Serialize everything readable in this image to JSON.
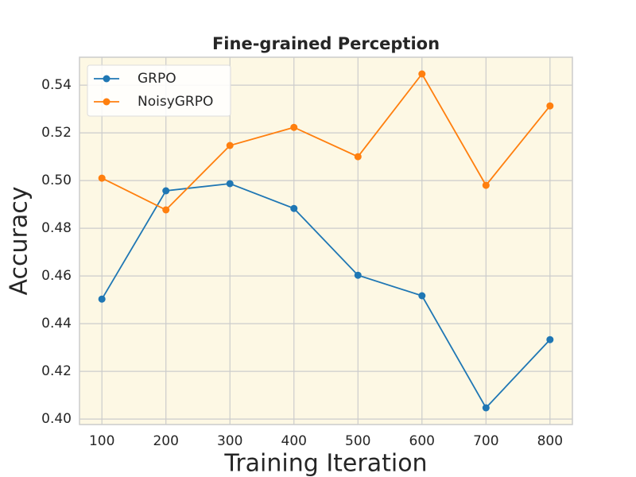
{
  "chart_data": {
    "type": "line",
    "title": "Fine-grained Perception",
    "x_label": "Training Iteration",
    "y_label": "Accuracy",
    "x": [
      100,
      200,
      300,
      400,
      500,
      600,
      700,
      800
    ],
    "series": [
      {
        "name": "GRPO",
        "color": "#1f77b4",
        "values": [
          0.4503,
          0.4957,
          0.4987,
          0.4883,
          0.4603,
          0.4517,
          0.4047,
          0.4333
        ]
      },
      {
        "name": "NoisyGRPO",
        "color": "#ff7f0e",
        "values": [
          0.501,
          0.4877,
          0.5147,
          0.5223,
          0.51,
          0.5447,
          0.498,
          0.5313
        ]
      }
    ],
    "xlim": [
      65,
      835
    ],
    "ylim": [
      0.3977,
      0.5517
    ],
    "xticks": [
      100,
      200,
      300,
      400,
      500,
      600,
      700,
      800
    ],
    "yticks": [
      {
        "value": 0.4,
        "label": "0.40"
      },
      0.42,
      0.44,
      0.46,
      0.48,
      {
        "value": 0.5,
        "label": "0.50"
      },
      0.52,
      0.54
    ],
    "grid": true,
    "legend": "upper left",
    "background": "#fdf8e4"
  }
}
